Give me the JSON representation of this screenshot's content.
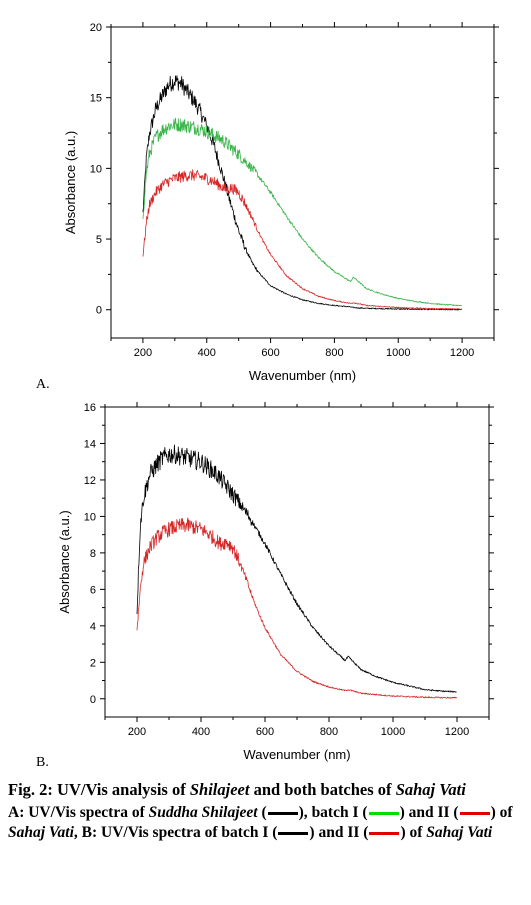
{
  "chart_data": [
    {
      "type": "line",
      "panel_label": "A.",
      "xlabel": "Wavenumber (nm)",
      "ylabel": "Absorbance (a.u.)",
      "xlim": [
        100,
        1300
      ],
      "ylim": [
        -2,
        20
      ],
      "xticks": [
        200,
        400,
        600,
        800,
        1000,
        1200
      ],
      "yticks": [
        0,
        5,
        10,
        15,
        20
      ],
      "grid": false,
      "legend": "none",
      "series": [
        {
          "color": "#000000",
          "x": [
            200,
            210,
            220,
            240,
            260,
            280,
            300,
            320,
            340,
            360,
            380,
            400,
            420,
            440,
            460,
            480,
            500,
            520,
            540,
            560,
            580,
            600,
            650,
            700,
            750,
            800,
            850,
            860,
            900,
            1000,
            1100,
            1200
          ],
          "y": [
            6.8,
            10.5,
            12.4,
            14.2,
            15.1,
            15.9,
            16.2,
            16.0,
            15.4,
            14.8,
            14.0,
            13.0,
            11.8,
            10.3,
            8.7,
            7.1,
            5.6,
            4.4,
            3.4,
            2.7,
            2.2,
            1.7,
            1.1,
            0.7,
            0.45,
            0.3,
            0.2,
            0.15,
            0.1,
            0.05,
            0.02,
            0.0
          ]
        },
        {
          "color": "#39b54a",
          "x": [
            200,
            210,
            220,
            240,
            260,
            280,
            300,
            320,
            340,
            360,
            380,
            400,
            450,
            500,
            550,
            600,
            650,
            700,
            750,
            800,
            850,
            860,
            900,
            950,
            1000,
            1050,
            1100,
            1150,
            1200
          ],
          "y": [
            6.5,
            9.5,
            11.0,
            12.2,
            12.7,
            13.0,
            13.1,
            13.1,
            13.0,
            12.9,
            12.8,
            12.6,
            12.0,
            11.0,
            9.8,
            8.3,
            6.6,
            5.0,
            3.7,
            2.7,
            2.0,
            2.3,
            1.5,
            1.1,
            0.8,
            0.6,
            0.45,
            0.35,
            0.3
          ]
        },
        {
          "color": "#d62728",
          "x": [
            200,
            210,
            220,
            240,
            260,
            280,
            300,
            320,
            340,
            360,
            380,
            400,
            420,
            440,
            460,
            480,
            500,
            520,
            540,
            560,
            580,
            600,
            650,
            700,
            750,
            800,
            850,
            860,
            900,
            1000,
            1100,
            1200
          ],
          "y": [
            3.8,
            6.0,
            7.4,
            8.3,
            8.8,
            9.1,
            9.3,
            9.4,
            9.5,
            9.5,
            9.4,
            9.3,
            9.1,
            8.8,
            8.5,
            8.6,
            8.3,
            7.5,
            6.6,
            5.6,
            4.7,
            3.9,
            2.4,
            1.5,
            0.95,
            0.65,
            0.45,
            0.5,
            0.3,
            0.15,
            0.08,
            0.05
          ]
        }
      ]
    },
    {
      "type": "line",
      "panel_label": "B.",
      "xlabel": "Wavenumber (nm)",
      "ylabel": "Absorbance (a.u.)",
      "xlim": [
        100,
        1300
      ],
      "ylim": [
        -1,
        16
      ],
      "xticks": [
        200,
        400,
        600,
        800,
        1000,
        1200
      ],
      "yticks": [
        0,
        2,
        4,
        6,
        8,
        10,
        12,
        14,
        16
      ],
      "grid": false,
      "legend": "none",
      "series": [
        {
          "color": "#000000",
          "x": [
            200,
            210,
            220,
            240,
            260,
            280,
            300,
            320,
            340,
            360,
            380,
            400,
            450,
            500,
            550,
            600,
            650,
            700,
            750,
            800,
            850,
            860,
            900,
            950,
            1000,
            1050,
            1100,
            1150,
            1200
          ],
          "y": [
            4.8,
            9.5,
            11.0,
            12.3,
            12.8,
            13.2,
            13.4,
            13.4,
            13.3,
            13.2,
            13.1,
            13.0,
            12.3,
            11.2,
            10.0,
            8.5,
            6.8,
            5.2,
            3.9,
            2.9,
            2.1,
            2.3,
            1.6,
            1.2,
            0.9,
            0.7,
            0.5,
            0.42,
            0.38
          ]
        },
        {
          "color": "#d62728",
          "x": [
            200,
            210,
            220,
            240,
            260,
            280,
            300,
            320,
            340,
            360,
            380,
            400,
            420,
            440,
            460,
            480,
            500,
            520,
            540,
            560,
            580,
            600,
            650,
            700,
            750,
            800,
            850,
            860,
            900,
            1000,
            1100,
            1200
          ],
          "y": [
            3.8,
            6.0,
            7.4,
            8.3,
            8.8,
            9.1,
            9.3,
            9.4,
            9.5,
            9.5,
            9.4,
            9.3,
            9.1,
            8.8,
            8.5,
            8.6,
            8.3,
            7.5,
            6.6,
            5.6,
            4.7,
            3.9,
            2.4,
            1.5,
            0.95,
            0.65,
            0.45,
            0.5,
            0.3,
            0.15,
            0.08,
            0.05
          ]
        }
      ]
    }
  ],
  "caption": {
    "fig_number": "Fig. 2:",
    "title_pre": "UV/Vis analysis of",
    "title_em1": "Shilajeet",
    "title_mid": "and both batches of",
    "title_em2": "Sahaj Vati",
    "desc_a": "A: UV/Vis spectra of",
    "desc_a_em": "Suddha Shilajeet",
    "desc_batch1": "batch I",
    "desc_and2": "and II",
    "desc_of": "of",
    "desc_sahaj": "Sahaj Vati",
    "desc_b": ", B: UV/Vis spectra of batch I",
    "swatch_black": "#000000",
    "swatch_green": "#00e000",
    "swatch_red": "#e00000"
  }
}
